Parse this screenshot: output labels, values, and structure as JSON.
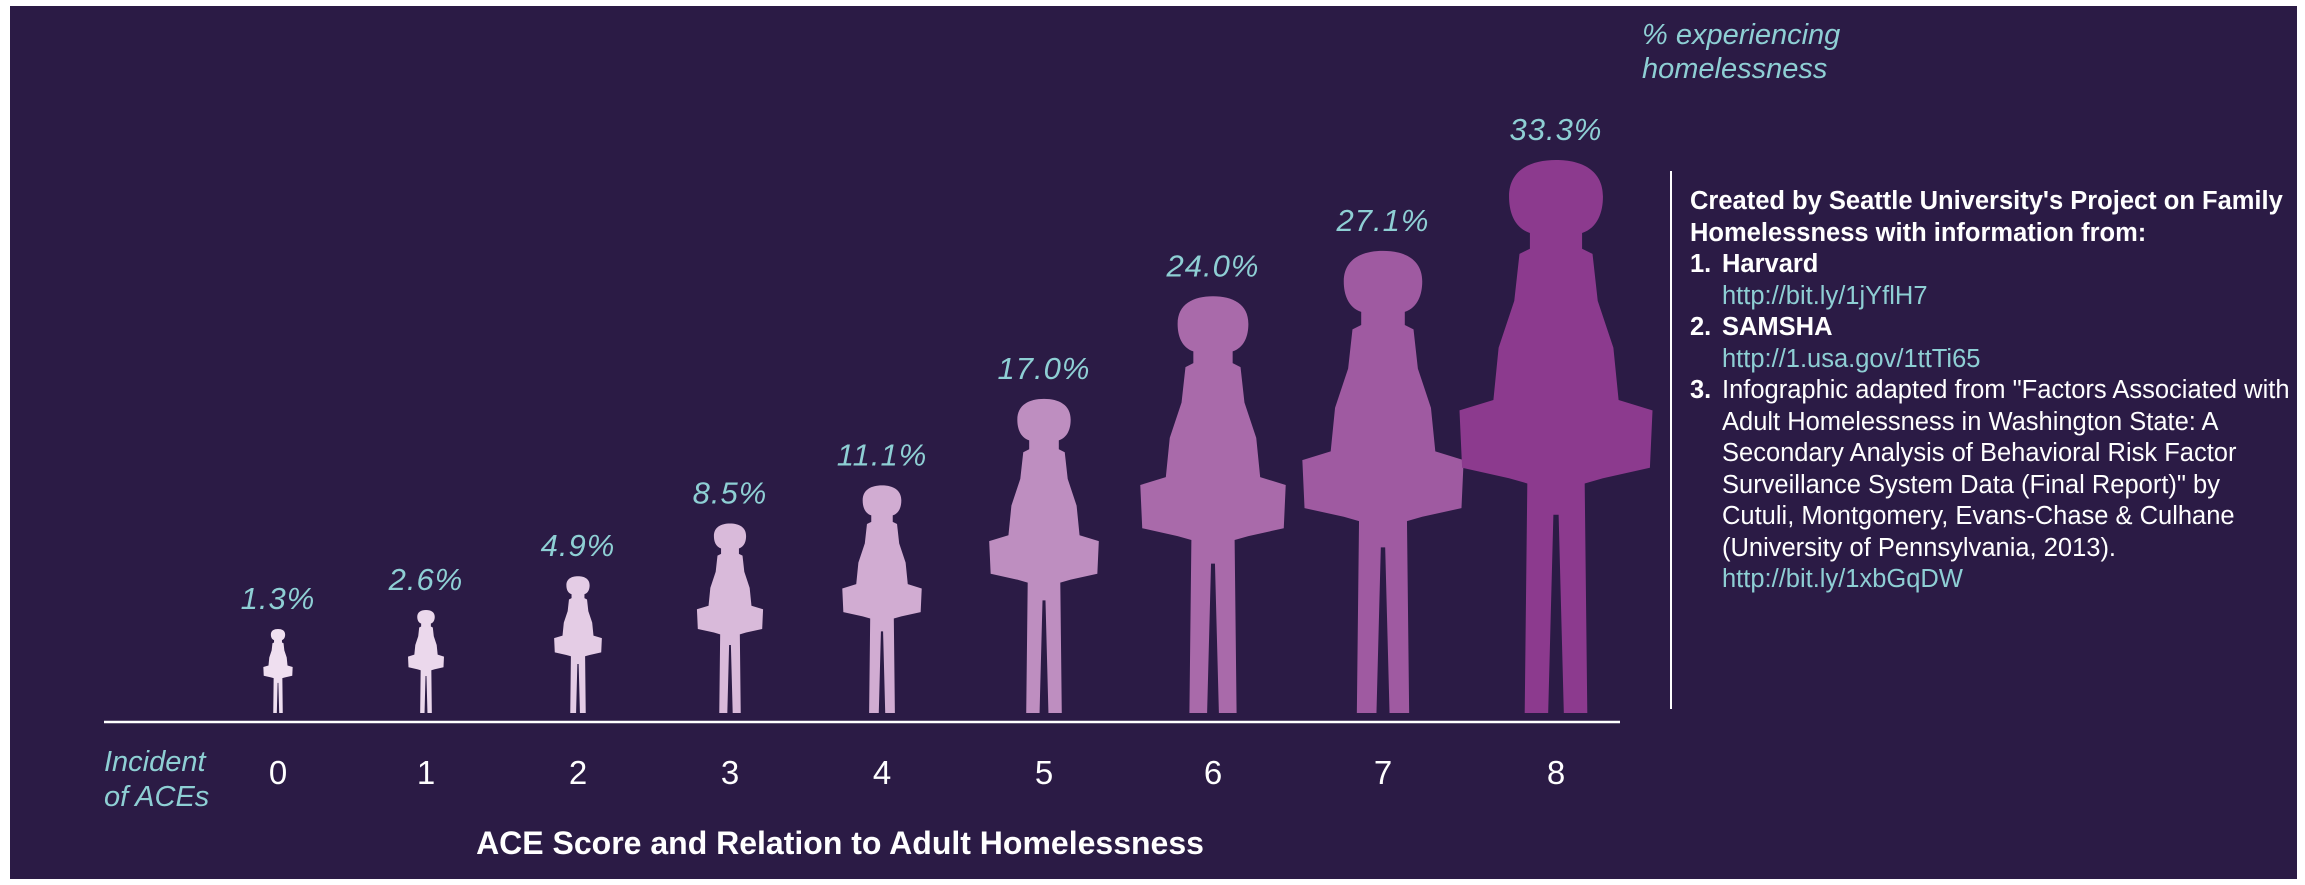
{
  "chart_data": {
    "type": "bar",
    "title": "ACE Score and Relation to Adult Homelessness",
    "xlabel": "Incident of ACEs",
    "ylabel": "% experiencing homelessness",
    "categories": [
      "0",
      "1",
      "2",
      "3",
      "4",
      "5",
      "6",
      "7",
      "8"
    ],
    "values": [
      1.3,
      2.6,
      4.9,
      8.5,
      11.1,
      17.0,
      24.0,
      27.1,
      33.3
    ],
    "value_labels": [
      "1.3%",
      "2.6%",
      "4.9%",
      "8.5%",
      "11.1%",
      "17.0%",
      "24.0%",
      "27.1%",
      "33.3%"
    ],
    "mark": "human-silhouette",
    "grid": false,
    "legend": "none"
  },
  "labels": {
    "measure_line1": "% experiencing",
    "measure_line2": "homelessness",
    "axis_line1": "Incident",
    "axis_line2": "of ACEs"
  },
  "sources": {
    "intro": "Created by Seattle University's Project on Family Homelessness with information from:",
    "items": [
      {
        "number": "1.",
        "name": "Harvard",
        "text": "",
        "link": "http://bit.ly/1jYflH7"
      },
      {
        "number": "2.",
        "name": "SAMSHA",
        "text": "",
        "link": "http://1.usa.gov/1ttTi65"
      },
      {
        "number": "3.",
        "name": "",
        "text": "Infographic adapted from \"Factors Associated with Adult Homelessness in Washington State: A Secondary Analysis of Behavioral Risk Factor Surveillance System Data (Final Report)\" by Cutuli, Montgomery, Evans-Chase & Culhane (University of Pennsylvania, 2013).",
        "link": "http://bit.ly/1xbGqDW"
      }
    ]
  },
  "colors": {
    "background": "#2b1b45",
    "accent_text": "#8ecfd4",
    "figure_light": "#efdff0",
    "figure_dark": "#8c3a8e",
    "baseline": "#ffffff"
  }
}
